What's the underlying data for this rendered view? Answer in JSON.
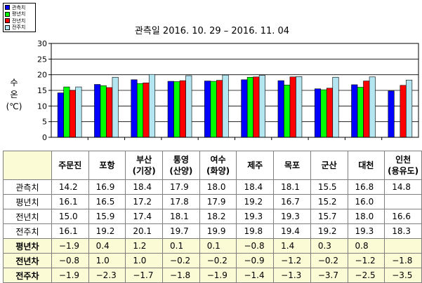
{
  "legend": [
    {
      "label": "관측치",
      "color": "#0000ff"
    },
    {
      "label": "평년치",
      "color": "#00ff00"
    },
    {
      "label": "전년치",
      "color": "#ff0000"
    },
    {
      "label": "전주치",
      "color": "#b3e6f0"
    }
  ],
  "chart_data": {
    "type": "bar",
    "title": "관측일 2016. 10. 29 – 2016. 11. 04",
    "ylabel": "수\n온\n(℃)",
    "ylim": [
      0,
      30
    ],
    "yticks": [
      "0",
      "5",
      "10",
      "15",
      "20",
      "25",
      "30"
    ],
    "grid": true,
    "categories": [
      "주문진",
      "포항",
      "부산\n(기장)",
      "통영\n(산양)",
      "여수\n(화양)",
      "제주",
      "목포",
      "군산",
      "대천",
      "인천\n(용유도)"
    ],
    "series": [
      {
        "name": "관측치",
        "color": "#0000ff",
        "values": [
          14.2,
          16.9,
          18.4,
          17.9,
          18.0,
          18.4,
          18.1,
          15.5,
          16.8,
          14.8
        ]
      },
      {
        "name": "평년치",
        "color": "#00ff00",
        "values": [
          16.1,
          16.5,
          17.2,
          17.8,
          17.9,
          19.2,
          16.7,
          15.2,
          16.0,
          null
        ]
      },
      {
        "name": "전년치",
        "color": "#ff0000",
        "values": [
          15.0,
          15.9,
          17.4,
          18.1,
          18.2,
          19.3,
          19.3,
          15.7,
          18.0,
          16.6
        ]
      },
      {
        "name": "전주치",
        "color": "#b3e6f0",
        "values": [
          16.1,
          19.2,
          20.1,
          19.7,
          19.9,
          19.8,
          19.4,
          19.2,
          19.3,
          18.3
        ]
      }
    ]
  },
  "table": {
    "columns": [
      "주문진",
      "포항",
      "부산\n(기장)",
      "통영\n(산양)",
      "여수\n(화양)",
      "제주",
      "목포",
      "군산",
      "대천",
      "인천\n(용유도)"
    ],
    "rows": [
      {
        "label": "관측치",
        "style": "normal",
        "values": [
          "14.2",
          "16.9",
          "18.4",
          "17.9",
          "18.0",
          "18.4",
          "18.1",
          "15.5",
          "16.8",
          "14.8"
        ]
      },
      {
        "label": "평년치",
        "style": "normal",
        "values": [
          "16.1",
          "16.5",
          "17.2",
          "17.8",
          "17.9",
          "19.2",
          "16.7",
          "15.2",
          "16.0",
          ""
        ]
      },
      {
        "label": "전년치",
        "style": "normal",
        "values": [
          "15.0",
          "15.9",
          "17.4",
          "18.1",
          "18.2",
          "19.3",
          "19.3",
          "15.7",
          "18.0",
          "16.6"
        ]
      },
      {
        "label": "전주치",
        "style": "normal",
        "values": [
          "16.1",
          "19.2",
          "20.1",
          "19.7",
          "19.9",
          "19.8",
          "19.4",
          "19.2",
          "19.3",
          "18.3"
        ]
      },
      {
        "label": "평년차",
        "style": "diff",
        "values": [
          "−1.9",
          "0.4",
          "1.2",
          "0.1",
          "0.1",
          "−0.8",
          "1.4",
          "0.3",
          "0.8",
          ""
        ]
      },
      {
        "label": "전년차",
        "style": "diff",
        "values": [
          "−0.8",
          "1.0",
          "1.0",
          "−0.2",
          "−0.2",
          "−0.9",
          "−1.2",
          "−0.2",
          "−1.2",
          "−1.8"
        ]
      },
      {
        "label": "전주차",
        "style": "diff",
        "values": [
          "−1.9",
          "−2.3",
          "−1.7",
          "−1.8",
          "−1.9",
          "−1.4",
          "−1.3",
          "−3.7",
          "−2.5",
          "−3.5"
        ]
      }
    ]
  }
}
